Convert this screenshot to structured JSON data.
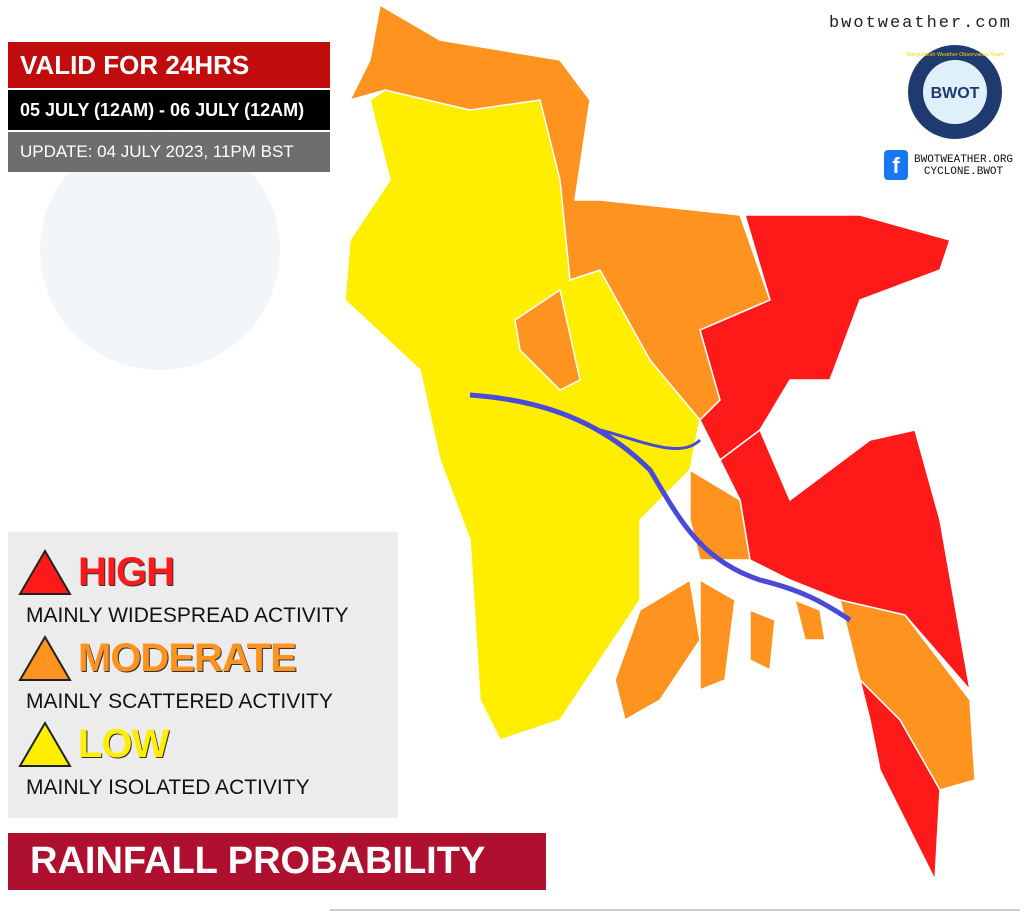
{
  "site": "bwotweather.com",
  "validity": {
    "title": "VALID FOR 24HRS",
    "period": "05 JULY (12AM) - 06 JULY (12AM)",
    "update": "UPDATE: 04 JULY 2023, 11PM BST"
  },
  "logo": {
    "text": "BWOT",
    "ring": "Bangladesh Weather Observation Team"
  },
  "social": {
    "lines": [
      "BWOTWEATHER.ORG",
      "CYCLONE.BWOT"
    ]
  },
  "legend": [
    {
      "level": "HIGH",
      "description": "MAINLY WIDESPREAD ACTIVITY",
      "color": "#ff1a1a"
    },
    {
      "level": "MODERATE",
      "description": "MAINLY SCATTERED ACTIVITY",
      "color": "#ff9320"
    },
    {
      "level": "LOW",
      "description": "MAINLY ISOLATED ACTIVITY",
      "color": "#ffee00"
    }
  ],
  "footer": "RAINFALL PROBABILITY"
}
